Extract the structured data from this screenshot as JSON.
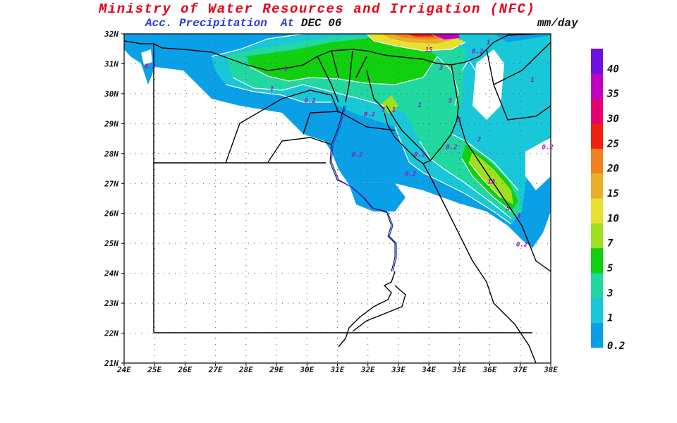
{
  "header": {
    "title": "Ministry of Water Resources and Irrigation (NFC)",
    "subtitle": "Acc. Precipitation",
    "at_label": "At",
    "date": "DEC 06",
    "units": "mm/day"
  },
  "axes": {
    "lat_labels": [
      "32N",
      "31N",
      "30N",
      "29N",
      "28N",
      "27N",
      "26N",
      "25N",
      "24N",
      "23N",
      "22N",
      "21N"
    ],
    "lon_labels": [
      "24E",
      "25E",
      "26E",
      "27E",
      "28E",
      "29E",
      "30E",
      "31E",
      "32E",
      "33E",
      "34E",
      "35E",
      "36E",
      "37E",
      "38E"
    ]
  },
  "legend": {
    "levels": [
      "0.2",
      "1",
      "3",
      "5",
      "7",
      "10",
      "15",
      "20",
      "25",
      "30",
      "35",
      "40"
    ],
    "colors": [
      "#0aa0e8",
      "#18c8d8",
      "#20d8a0",
      "#10d010",
      "#a0e020",
      "#e8e030",
      "#e8b028",
      "#f08020",
      "#f02010",
      "#e80070",
      "#c000c0",
      "#7010e0"
    ]
  },
  "contour_labels": [
    {
      "text": "0.2",
      "lon": 24.85,
      "lat": 30.85
    },
    {
      "text": "5",
      "lon": 29.3,
      "lat": 30.75
    },
    {
      "text": "1",
      "lon": 28.85,
      "lat": 30.1
    },
    {
      "text": "0.2",
      "lon": 30.1,
      "lat": 29.7
    },
    {
      "text": "15",
      "lon": 34.0,
      "lat": 31.4
    },
    {
      "text": "3",
      "lon": 34.4,
      "lat": 30.8
    },
    {
      "text": "0.2",
      "lon": 35.6,
      "lat": 31.35
    },
    {
      "text": "1",
      "lon": 35.95,
      "lat": 31.65
    },
    {
      "text": "1",
      "lon": 37.4,
      "lat": 30.4
    },
    {
      "text": "3",
      "lon": 34.7,
      "lat": 29.7
    },
    {
      "text": "1",
      "lon": 33.7,
      "lat": 29.55
    },
    {
      "text": "0.2",
      "lon": 32.05,
      "lat": 29.25
    },
    {
      "text": "3",
      "lon": 32.5,
      "lat": 29.4
    },
    {
      "text": "1",
      "lon": 32.85,
      "lat": 29.4
    },
    {
      "text": "3",
      "lon": 35.0,
      "lat": 29.05
    },
    {
      "text": "0.2",
      "lon": 34.75,
      "lat": 28.15
    },
    {
      "text": "7",
      "lon": 35.65,
      "lat": 28.4
    },
    {
      "text": "0.2",
      "lon": 33.7,
      "lat": 27.9
    },
    {
      "text": "0.2",
      "lon": 33.4,
      "lat": 27.25
    },
    {
      "text": "0.2",
      "lon": 31.65,
      "lat": 27.9
    },
    {
      "text": "10",
      "lon": 36.05,
      "lat": 27.0
    },
    {
      "text": "5",
      "lon": 36.6,
      "lat": 26.1
    },
    {
      "text": "3",
      "lon": 36.95,
      "lat": 25.85
    },
    {
      "text": "0.2",
      "lon": 37.05,
      "lat": 24.9
    },
    {
      "text": "0.2",
      "lon": 37.9,
      "lat": 28.15
    }
  ]
}
